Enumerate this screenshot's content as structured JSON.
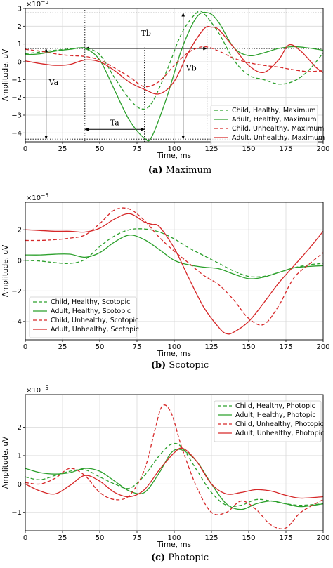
{
  "chart_data": [
    {
      "type": "line",
      "panel": "a",
      "caption_letter": "(a)",
      "caption_text": "Maximum",
      "xlabel": "Time, ms",
      "ylabel": "Amplitude, uV",
      "multiplier": "×10",
      "multiplier_exp": "−5",
      "xlim": [
        0,
        200
      ],
      "ylim": [
        -4.5,
        3.0
      ],
      "xticks": [
        0,
        25,
        50,
        75,
        100,
        125,
        150,
        175,
        200
      ],
      "yticks": [
        -4,
        -3,
        -2,
        -1,
        0,
        1,
        2,
        3
      ],
      "grid": true,
      "legend": "lower-right",
      "series": [
        {
          "name": "Child, Healthy, Maximum",
          "color": "#2ca02c",
          "dash": "dashed",
          "x": [
            0,
            10,
            20,
            30,
            40,
            50,
            60,
            70,
            78,
            85,
            95,
            105,
            115,
            120,
            130,
            140,
            150,
            160,
            170,
            180,
            190,
            200
          ],
          "y": [
            0.45,
            0.55,
            0.65,
            0.72,
            0.78,
            0.4,
            -0.9,
            -2.1,
            -2.65,
            -2.3,
            -0.5,
            1.6,
            2.75,
            2.7,
            1.6,
            0.1,
            -0.75,
            -1.0,
            -1.25,
            -1.1,
            -0.5,
            0.5
          ]
        },
        {
          "name": "Adult, Healthy, Maximum",
          "color": "#2ca02c",
          "dash": "solid",
          "x": [
            0,
            10,
            20,
            30,
            40,
            50,
            60,
            70,
            80,
            85,
            95,
            105,
            115,
            123,
            130,
            140,
            150,
            160,
            170,
            180,
            190,
            200
          ],
          "y": [
            0.4,
            0.45,
            0.6,
            0.7,
            0.75,
            0.1,
            -1.6,
            -3.3,
            -4.3,
            -4.2,
            -2.0,
            0.7,
            2.5,
            2.75,
            2.2,
            0.8,
            0.35,
            0.5,
            0.75,
            0.85,
            0.78,
            0.65
          ]
        },
        {
          "name": "Child, Unhealthy, Maximum",
          "color": "#d62728",
          "dash": "dashed",
          "x": [
            0,
            10,
            20,
            30,
            40,
            50,
            60,
            70,
            80,
            90,
            100,
            110,
            120,
            130,
            140,
            150,
            160,
            170,
            180,
            190,
            200
          ],
          "y": [
            0.7,
            0.6,
            0.45,
            0.35,
            0.3,
            0.1,
            -0.35,
            -0.85,
            -1.4,
            -1.1,
            -0.2,
            0.55,
            0.85,
            0.6,
            0.2,
            -0.05,
            -0.2,
            -0.3,
            -0.45,
            -0.55,
            -0.5
          ]
        },
        {
          "name": "Adult, Unhealthy, Maximum",
          "color": "#d62728",
          "dash": "solid",
          "x": [
            0,
            10,
            20,
            30,
            40,
            50,
            60,
            70,
            80,
            90,
            100,
            110,
            120,
            125,
            130,
            140,
            150,
            160,
            170,
            177,
            185,
            195,
            200
          ],
          "y": [
            0.05,
            -0.1,
            -0.2,
            -0.15,
            0.1,
            0.0,
            -0.5,
            -1.15,
            -1.55,
            -1.8,
            -1.1,
            0.6,
            1.85,
            1.95,
            1.8,
            0.8,
            -0.2,
            -0.6,
            0.1,
            0.95,
            0.6,
            -0.3,
            -0.6
          ]
        }
      ],
      "annotations": [
        {
          "label": "Tb",
          "kind": "horizontal-arrow",
          "x_from": 40,
          "x_to": 122,
          "y": 0.75
        },
        {
          "label": "Ta",
          "kind": "horizontal-arrow",
          "x_from": 40,
          "x_to": 80,
          "y": -3.8
        },
        {
          "label": "Va",
          "kind": "vertical-arrow",
          "x": 14,
          "y_from": -4.35,
          "y_to": 0.75
        },
        {
          "label": "Vb",
          "kind": "vertical-arrow",
          "x": 106,
          "y_from": -4.35,
          "y_to": 2.75
        }
      ]
    },
    {
      "type": "line",
      "panel": "b",
      "caption_letter": "(b)",
      "caption_text": "Scotopic",
      "xlabel": "Time, ms",
      "ylabel": "Amplitude, uV",
      "multiplier": "×10",
      "multiplier_exp": "−5",
      "xlim": [
        0,
        200
      ],
      "ylim": [
        -5.2,
        3.8
      ],
      "xticks": [
        0,
        25,
        50,
        75,
        100,
        125,
        150,
        175,
        200
      ],
      "yticks": [
        -4,
        -2,
        0,
        2
      ],
      "grid": true,
      "legend": "lower-left",
      "series": [
        {
          "name": "Child, Healthy, Scotopic",
          "color": "#2ca02c",
          "dash": "dashed",
          "x": [
            0,
            10,
            20,
            30,
            40,
            50,
            60,
            70,
            80,
            90,
            100,
            110,
            120,
            130,
            140,
            150,
            160,
            170,
            180,
            190,
            200
          ],
          "y": [
            0.0,
            -0.05,
            -0.15,
            -0.2,
            0.05,
            0.9,
            1.6,
            2.0,
            2.05,
            1.85,
            1.4,
            0.8,
            0.3,
            -0.2,
            -0.7,
            -1.05,
            -1.05,
            -0.8,
            -0.5,
            -0.3,
            -0.2
          ]
        },
        {
          "name": "Adult, Healthy, Scotopic",
          "color": "#2ca02c",
          "dash": "solid",
          "x": [
            0,
            10,
            20,
            30,
            40,
            50,
            60,
            70,
            80,
            90,
            100,
            110,
            120,
            130,
            140,
            150,
            160,
            170,
            180,
            190,
            200
          ],
          "y": [
            0.35,
            0.35,
            0.4,
            0.4,
            0.2,
            0.5,
            1.2,
            1.65,
            1.35,
            0.7,
            0.0,
            -0.3,
            -0.45,
            -0.55,
            -0.9,
            -1.2,
            -1.1,
            -0.8,
            -0.5,
            -0.4,
            -0.35
          ]
        },
        {
          "name": "Child, Unhealthy, Scotopic",
          "color": "#d62728",
          "dash": "dashed",
          "x": [
            0,
            10,
            20,
            30,
            40,
            50,
            60,
            70,
            80,
            90,
            100,
            110,
            120,
            130,
            140,
            150,
            160,
            170,
            180,
            190,
            200
          ],
          "y": [
            1.3,
            1.3,
            1.35,
            1.45,
            1.65,
            2.4,
            3.3,
            3.35,
            2.6,
            1.5,
            0.6,
            -0.2,
            -1.0,
            -1.6,
            -2.6,
            -3.8,
            -4.2,
            -3.0,
            -1.2,
            -0.3,
            0.5
          ]
        },
        {
          "name": "Adult, Unhealthy, Scotopic",
          "color": "#d62728",
          "dash": "solid",
          "x": [
            0,
            10,
            20,
            30,
            40,
            50,
            60,
            70,
            80,
            85,
            90,
            100,
            110,
            120,
            130,
            135,
            140,
            150,
            160,
            170,
            180,
            190,
            200
          ],
          "y": [
            2.0,
            1.95,
            1.9,
            1.9,
            1.85,
            2.1,
            2.7,
            3.05,
            2.5,
            2.35,
            2.2,
            0.8,
            -1.2,
            -3.1,
            -4.4,
            -4.8,
            -4.7,
            -4.0,
            -2.8,
            -1.5,
            -0.4,
            0.7,
            1.9
          ]
        }
      ]
    },
    {
      "type": "line",
      "panel": "c",
      "caption_letter": "(c)",
      "caption_text": "Photopic",
      "xlabel": "Time, ms",
      "ylabel": "Amplitude, uV",
      "multiplier": "×10",
      "multiplier_exp": "−5",
      "xlim": [
        0,
        200
      ],
      "ylim": [
        -1.65,
        3.15
      ],
      "xticks": [
        0,
        25,
        50,
        75,
        100,
        125,
        150,
        175,
        200
      ],
      "yticks": [
        -1,
        0,
        1,
        2
      ],
      "grid": true,
      "legend": "upper-right",
      "series": [
        {
          "name": "Child, Healthy, Photopic",
          "color": "#2ca02c",
          "dash": "dashed",
          "x": [
            0,
            10,
            20,
            30,
            40,
            50,
            60,
            70,
            80,
            90,
            98,
            105,
            115,
            125,
            135,
            145,
            155,
            165,
            175,
            185,
            200
          ],
          "y": [
            0.25,
            0.15,
            0.3,
            0.45,
            0.5,
            0.25,
            0.0,
            -0.15,
            0.3,
            1.0,
            1.4,
            1.3,
            0.5,
            -0.3,
            -0.75,
            -0.75,
            -0.55,
            -0.6,
            -0.7,
            -0.75,
            -0.7
          ]
        },
        {
          "name": "Adult, Healthy, Photopic",
          "color": "#2ca02c",
          "dash": "solid",
          "x": [
            0,
            10,
            20,
            30,
            40,
            50,
            60,
            70,
            80,
            90,
            98,
            105,
            115,
            125,
            135,
            145,
            155,
            165,
            175,
            185,
            200
          ],
          "y": [
            0.55,
            0.4,
            0.35,
            0.4,
            0.55,
            0.45,
            0.1,
            -0.25,
            -0.3,
            0.4,
            1.1,
            1.2,
            0.8,
            0.0,
            -0.7,
            -0.9,
            -0.7,
            -0.6,
            -0.7,
            -0.8,
            -0.7
          ]
        },
        {
          "name": "Child, Unhealthy, Photopic",
          "color": "#d62728",
          "dash": "dashed",
          "x": [
            0,
            10,
            20,
            30,
            40,
            50,
            60,
            70,
            80,
            87,
            92,
            98,
            105,
            115,
            125,
            135,
            145,
            155,
            165,
            175,
            185,
            200
          ],
          "y": [
            0.05,
            0.0,
            0.2,
            0.55,
            0.3,
            -0.3,
            -0.55,
            -0.4,
            0.5,
            1.9,
            2.75,
            2.5,
            1.3,
            -0.1,
            -1.0,
            -1.0,
            -0.6,
            -0.9,
            -1.45,
            -1.55,
            -1.0,
            -0.55
          ]
        },
        {
          "name": "Adult, Unhealthy, Photopic",
          "color": "#d62728",
          "dash": "solid",
          "x": [
            0,
            10,
            20,
            30,
            40,
            50,
            60,
            70,
            80,
            90,
            100,
            106,
            115,
            125,
            135,
            145,
            155,
            165,
            175,
            185,
            200
          ],
          "y": [
            0.0,
            -0.25,
            -0.35,
            -0.05,
            0.3,
            0.1,
            -0.3,
            -0.45,
            -0.2,
            0.5,
            1.1,
            1.25,
            0.8,
            0.0,
            -0.35,
            -0.3,
            -0.2,
            -0.25,
            -0.4,
            -0.5,
            -0.45
          ]
        }
      ]
    }
  ]
}
